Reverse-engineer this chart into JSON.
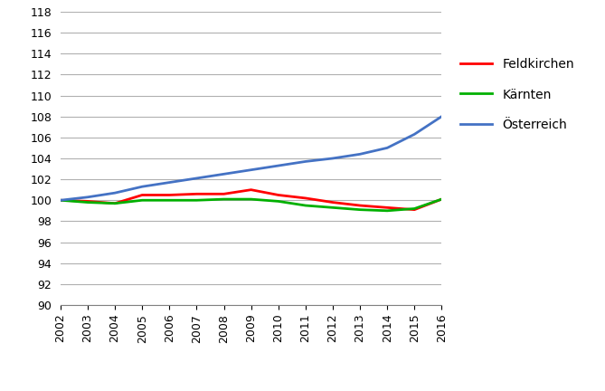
{
  "years": [
    2002,
    2003,
    2004,
    2005,
    2006,
    2007,
    2008,
    2009,
    2010,
    2011,
    2012,
    2013,
    2014,
    2015,
    2016
  ],
  "feldkirchen": [
    100.0,
    99.9,
    99.7,
    100.5,
    100.5,
    100.6,
    100.6,
    101.0,
    100.5,
    100.2,
    99.8,
    99.5,
    99.3,
    99.1,
    100.1
  ],
  "karnten": [
    100.0,
    99.8,
    99.7,
    100.0,
    100.0,
    100.0,
    100.1,
    100.1,
    99.9,
    99.5,
    99.3,
    99.1,
    99.0,
    99.2,
    100.1
  ],
  "osterreich": [
    100.0,
    100.3,
    100.7,
    101.3,
    101.7,
    102.1,
    102.5,
    102.9,
    103.3,
    103.7,
    104.0,
    104.4,
    105.0,
    106.3,
    108.0
  ],
  "line_colors": {
    "feldkirchen": "#ff0000",
    "karnten": "#00b000",
    "osterreich": "#4472c4"
  },
  "legend_labels": [
    "Feldkirchen",
    "Kärnten",
    "Österreich"
  ],
  "ylim": [
    90,
    118
  ],
  "yticks": [
    90,
    92,
    94,
    96,
    98,
    100,
    102,
    104,
    106,
    108,
    110,
    112,
    114,
    116,
    118
  ],
  "line_width": 2.0,
  "bg_color": "#ffffff",
  "grid_color": "#b0b0b0"
}
